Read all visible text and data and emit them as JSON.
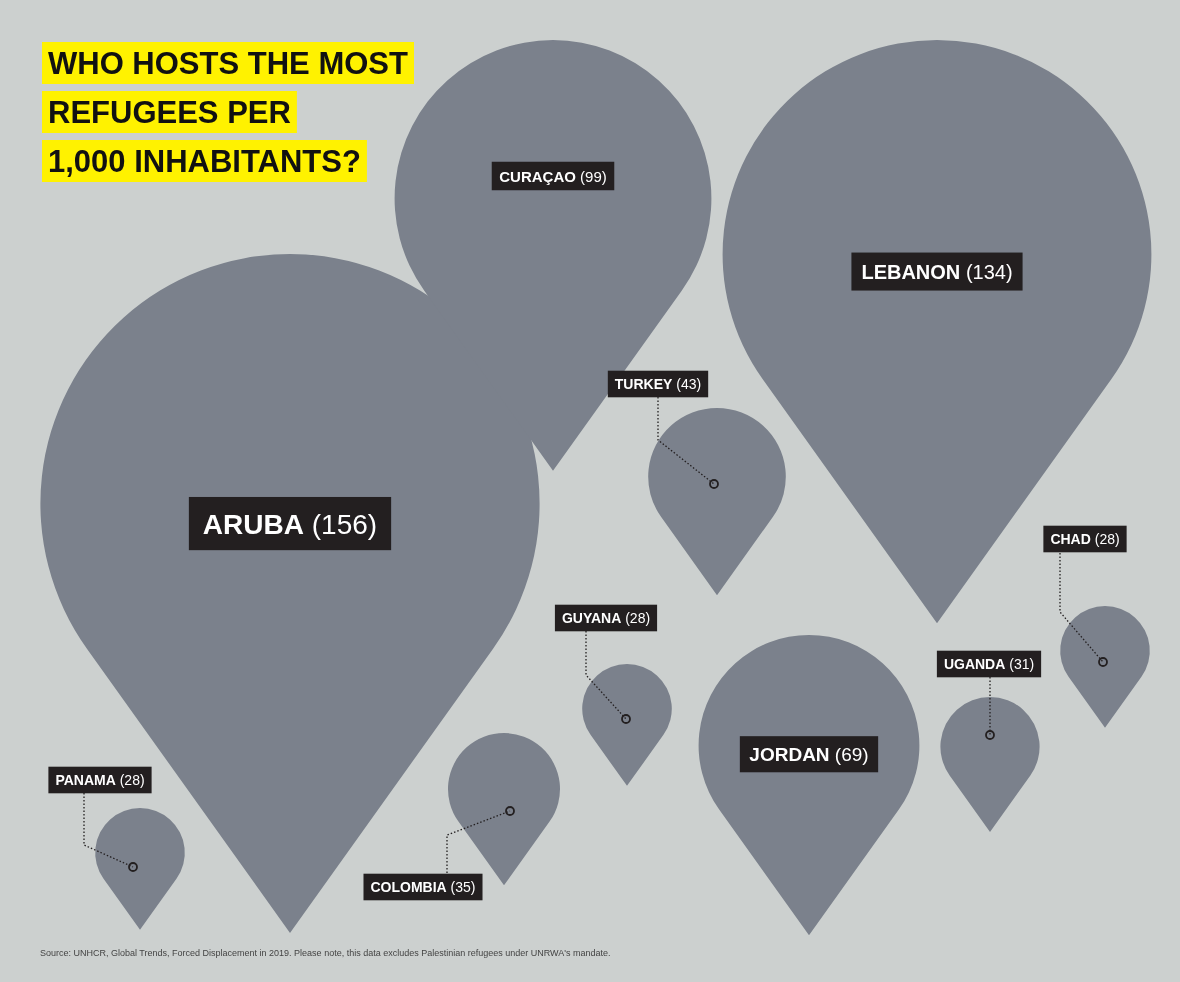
{
  "chart_data": {
    "type": "other",
    "title": "WHO HOSTS THE MOST\nREFUGEES PER\n1,000 INHABITANTS?",
    "categories": [
      "ARUBA",
      "LEBANON",
      "CURAÇAO",
      "JORDAN",
      "TURKEY",
      "COLOMBIA",
      "UGANDA",
      "CHAD",
      "GUYANA",
      "PANAMA"
    ],
    "values": [
      156,
      134,
      99,
      69,
      43,
      35,
      31,
      28,
      28,
      28
    ],
    "value_labels": [
      "(156)",
      "(134)",
      "(99)",
      "(69)",
      "(43)",
      "(35)",
      "(31)",
      "(28)",
      "(28)",
      "(28)"
    ],
    "annotations": [
      "Source: UNHCR, Global Trends, Forced Displacement in 2019. Please note, this data excludes Palestinian refugees under UNRWA's mandate."
    ]
  }
}
